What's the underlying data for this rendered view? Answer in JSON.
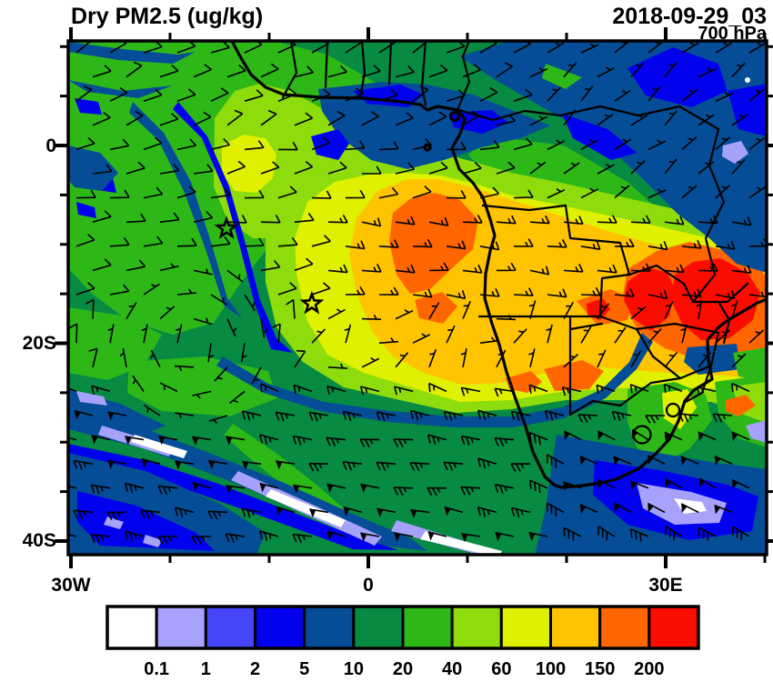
{
  "header": {
    "title": "Dry PM2.5 (ug/kg)",
    "datetime": "2018-09-29_03",
    "level": "700 hPa"
  },
  "axes": {
    "lat_labels": [
      "0",
      "20S",
      "40S"
    ],
    "lon_labels": [
      "30W",
      "0",
      "30E"
    ],
    "lat_tick_degs": [
      -10,
      -5,
      0,
      5,
      10,
      15,
      20,
      25,
      30,
      35,
      40
    ],
    "lon_tick_degs": [
      -30,
      -20,
      -10,
      0,
      10,
      20,
      30,
      40
    ]
  },
  "colorbar": {
    "levels": [
      "0.1",
      "1",
      "2",
      "5",
      "10",
      "20",
      "40",
      "60",
      "100",
      "150",
      "200"
    ],
    "colors": [
      "#FFFFFF",
      "#A6A1FA",
      "#4745FA",
      "#0101EE",
      "#054D96",
      "#078A42",
      "#2DB818",
      "#8EDC0C",
      "#DFF000",
      "#FFC400",
      "#FF6600",
      "#FB0C00"
    ]
  },
  "map": {
    "markers": [
      {
        "type": "star",
        "lon": -14.3,
        "lat": -8.4
      },
      {
        "type": "star",
        "lon": -5.7,
        "lat": -16.0
      }
    ]
  },
  "chart_data": {
    "type": "heatmap",
    "title": "Dry PM2.5 (ug/kg)",
    "valid_time": "2018-09-29_03",
    "pressure_level": "700 hPa",
    "x": {
      "label": "longitude",
      "tick_labels": [
        "30W",
        "0",
        "30E"
      ],
      "range_deg": [
        -30,
        40
      ]
    },
    "y": {
      "label": "latitude",
      "tick_labels": [
        "0",
        "20S",
        "40S"
      ],
      "range_deg": [
        11,
        -41.5
      ]
    },
    "color_scale": {
      "units": "ug/kg",
      "boundaries": [
        0.1,
        1,
        2,
        5,
        10,
        20,
        40,
        60,
        100,
        150,
        200
      ],
      "colors": [
        "#FFFFFF",
        "#A6A1FA",
        "#4745FA",
        "#0101EE",
        "#054D96",
        "#078A42",
        "#2DB818",
        "#8EDC0C",
        "#DFF000",
        "#FFC400",
        "#FF6600",
        "#FB0C00"
      ]
    },
    "overlays": [
      "wind barbs at 700 hPa",
      "coastlines",
      "country borders",
      "two star island markers (South Atlantic)"
    ],
    "notable_features": [
      {
        "feature": "main biomass-burning plume 60-150 ug/kg",
        "location": "Angola / Congo Basin / southeast Atlantic, about 5S-25S"
      },
      {
        "feature": "maximum above 200 ug/kg",
        "location": "Zimbabwe / Malawi / northern Mozambique, about 30E-37E, 12S-18S"
      },
      {
        "feature": "clean band below 1 ug/kg",
        "location": "South Atlantic frontal zone near 33S-40S and SW Indian Ocean"
      },
      {
        "feature": "low values 2-10 ug/kg",
        "location": "East and Central Africa north of about 5S"
      }
    ]
  }
}
